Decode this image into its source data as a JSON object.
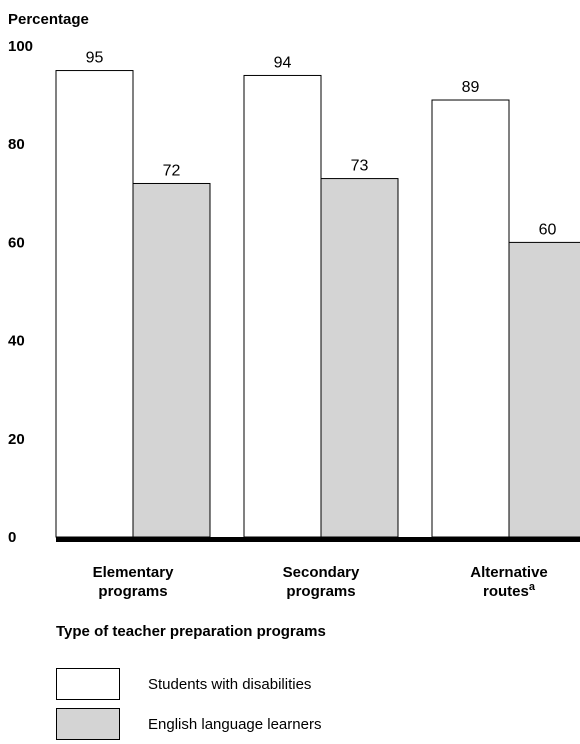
{
  "chart_data": {
    "type": "bar",
    "ylabel": "Percentage",
    "xlabel": "Type of teacher preparation programs",
    "ylim": [
      0,
      100
    ],
    "yticks": [
      0,
      20,
      40,
      60,
      80,
      100
    ],
    "categories": [
      {
        "line1": "Elementary",
        "line2": "programs",
        "sup": ""
      },
      {
        "line1": "Secondary",
        "line2": "programs",
        "sup": ""
      },
      {
        "line1": "Alternative",
        "line2": "routes",
        "sup": "a"
      }
    ],
    "series": [
      {
        "name": "Students with disabilities",
        "color": "#ffffff",
        "values": [
          95,
          94,
          89
        ]
      },
      {
        "name": "English language learners",
        "color": "#d4d4d4",
        "values": [
          72,
          73,
          60
        ]
      }
    ],
    "legend_placement": "bottom-left",
    "grid": false
  }
}
